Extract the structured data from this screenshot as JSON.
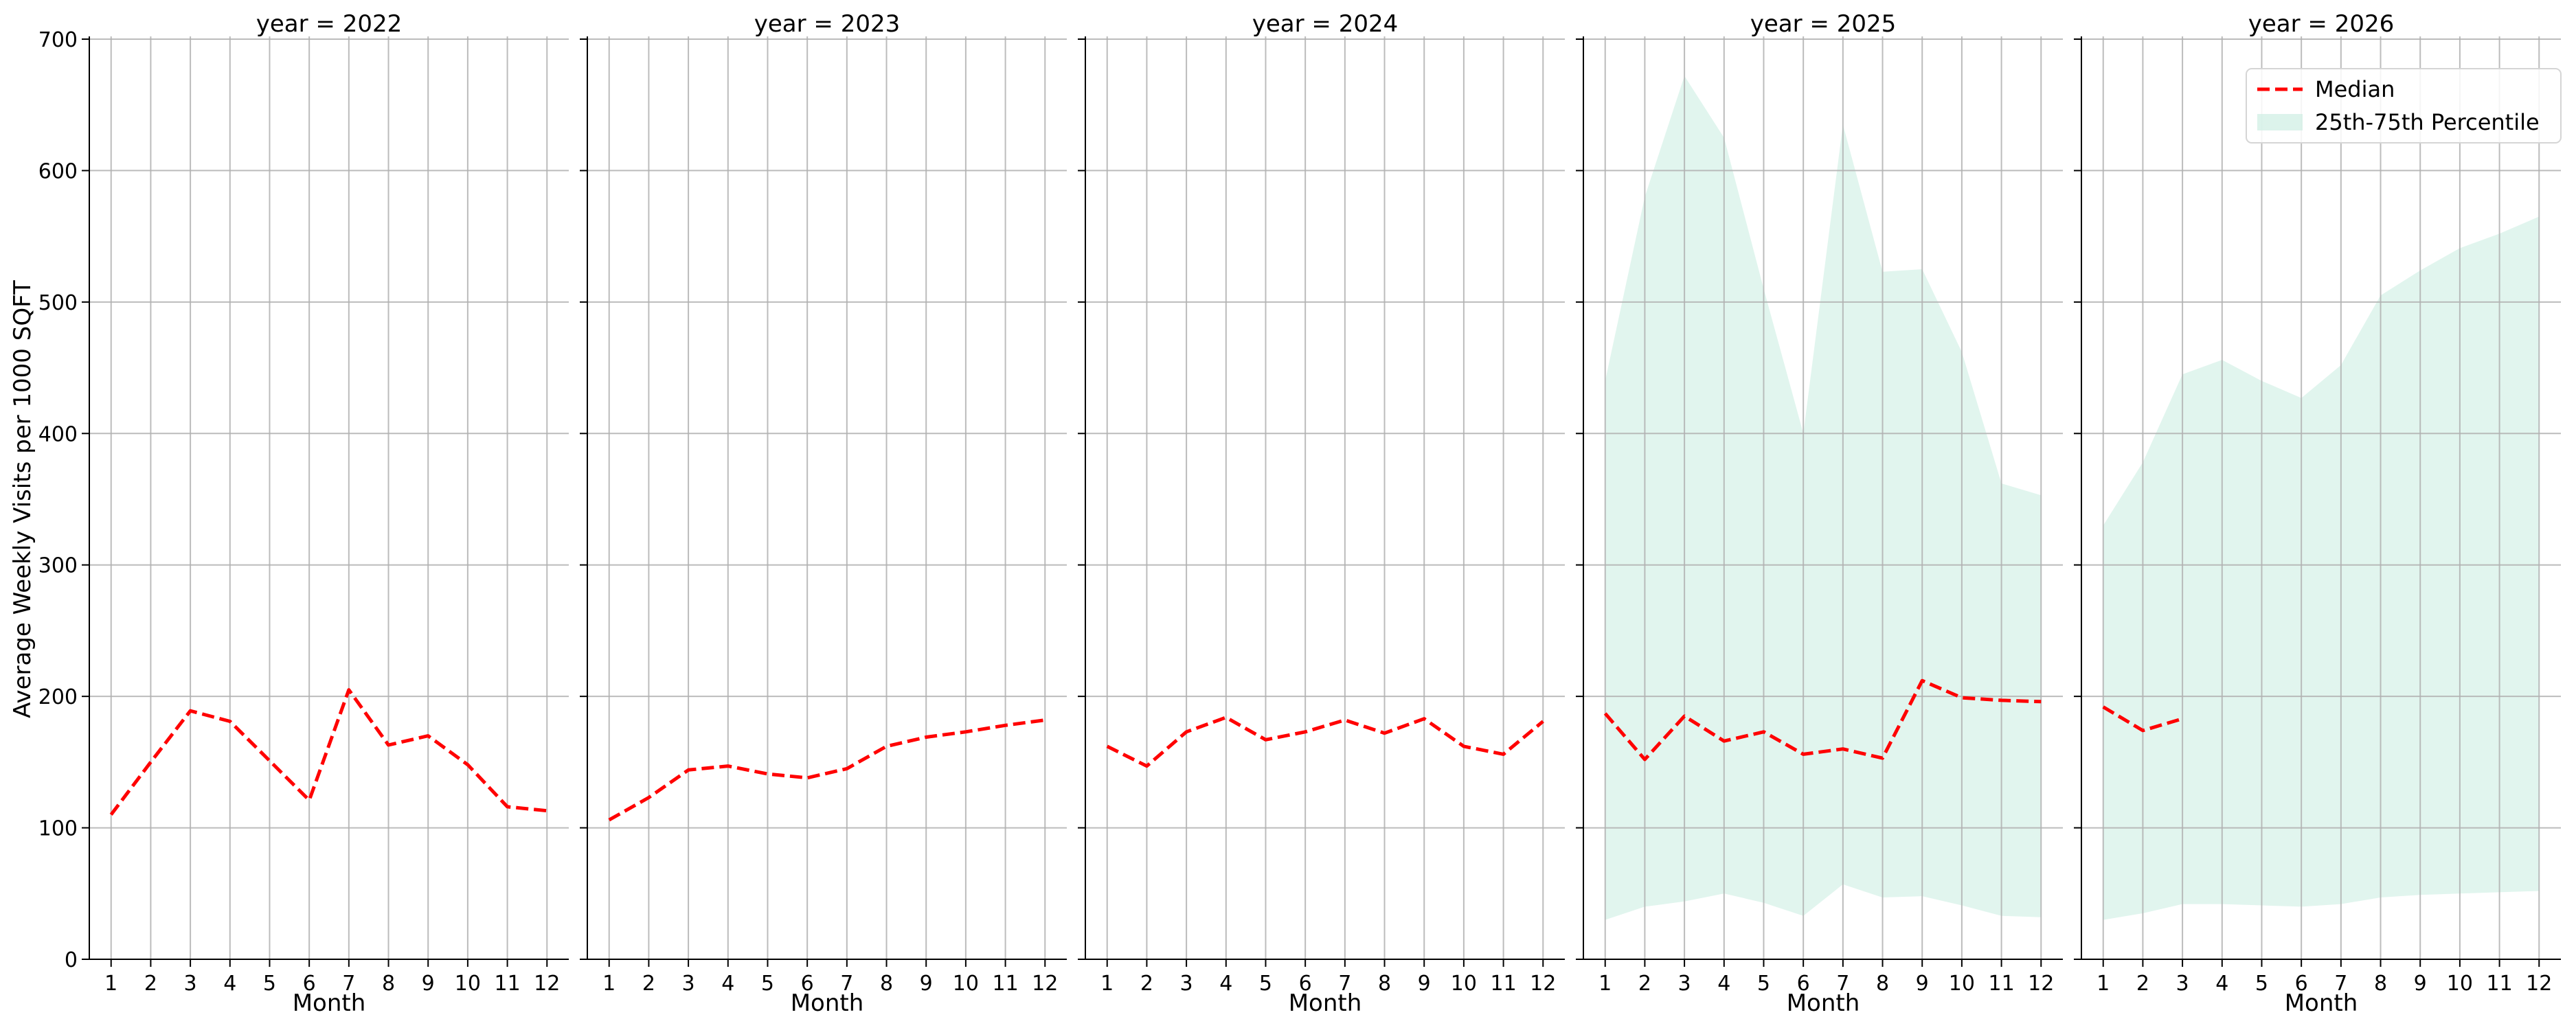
{
  "chart_data": {
    "type": "line",
    "ylabel": "Average Weekly Visits per 1000 SQFT",
    "xlabel": "Month",
    "x": [
      1,
      2,
      3,
      4,
      5,
      6,
      7,
      8,
      9,
      10,
      11,
      12
    ],
    "x_ticks": [
      "1",
      "2",
      "3",
      "4",
      "5",
      "6",
      "7",
      "8",
      "9",
      "10",
      "11",
      "12"
    ],
    "ylim": [
      0,
      700
    ],
    "y_ticks": [
      0,
      100,
      200,
      300,
      400,
      500,
      600,
      700
    ],
    "grid": true,
    "sharey": true,
    "legend": {
      "placement": "top-right",
      "entries": [
        {
          "label": "Median",
          "style": "dashed-line",
          "color": "#ff0000"
        },
        {
          "label": "25th-75th Percentile",
          "style": "fill",
          "color": "#cdeee3"
        }
      ]
    },
    "colors": {
      "median": "#ff0000",
      "band": "#cdeee3",
      "grid": "#b0b0b0",
      "axis": "#000000"
    },
    "panels": [
      {
        "title": "year = 2022",
        "median": [
          110,
          150,
          189,
          181,
          151,
          121,
          205,
          163,
          170,
          148,
          116,
          113
        ],
        "p25": null,
        "p75": null
      },
      {
        "title": "year = 2023",
        "median": [
          106,
          123,
          144,
          147,
          141,
          138,
          145,
          162,
          169,
          173,
          178,
          182
        ],
        "p25": null,
        "p75": null
      },
      {
        "title": "year = 2024",
        "median": [
          162,
          147,
          173,
          184,
          167,
          173,
          182,
          172,
          183,
          162,
          156,
          181
        ],
        "p25": null,
        "p75": null
      },
      {
        "title": "year = 2025",
        "median": [
          187,
          152,
          185,
          166,
          173,
          156,
          160,
          153,
          212,
          199,
          197,
          196
        ],
        "p25": [
          30,
          40,
          44,
          50,
          43,
          33,
          57,
          47,
          48,
          41,
          33,
          32
        ],
        "p75": [
          440,
          580,
          672,
          625,
          510,
          400,
          635,
          523,
          525,
          462,
          362,
          353
        ]
      },
      {
        "title": "year = 2026",
        "median": [
          192,
          174,
          183,
          null,
          null,
          null,
          null,
          null,
          null,
          null,
          null,
          null
        ],
        "p25": [
          30,
          35,
          42,
          42,
          41,
          40,
          42,
          47,
          49,
          50,
          51,
          52
        ],
        "p75": [
          330,
          378,
          445,
          456,
          440,
          427,
          452,
          505,
          524,
          541,
          552,
          565
        ]
      }
    ]
  }
}
